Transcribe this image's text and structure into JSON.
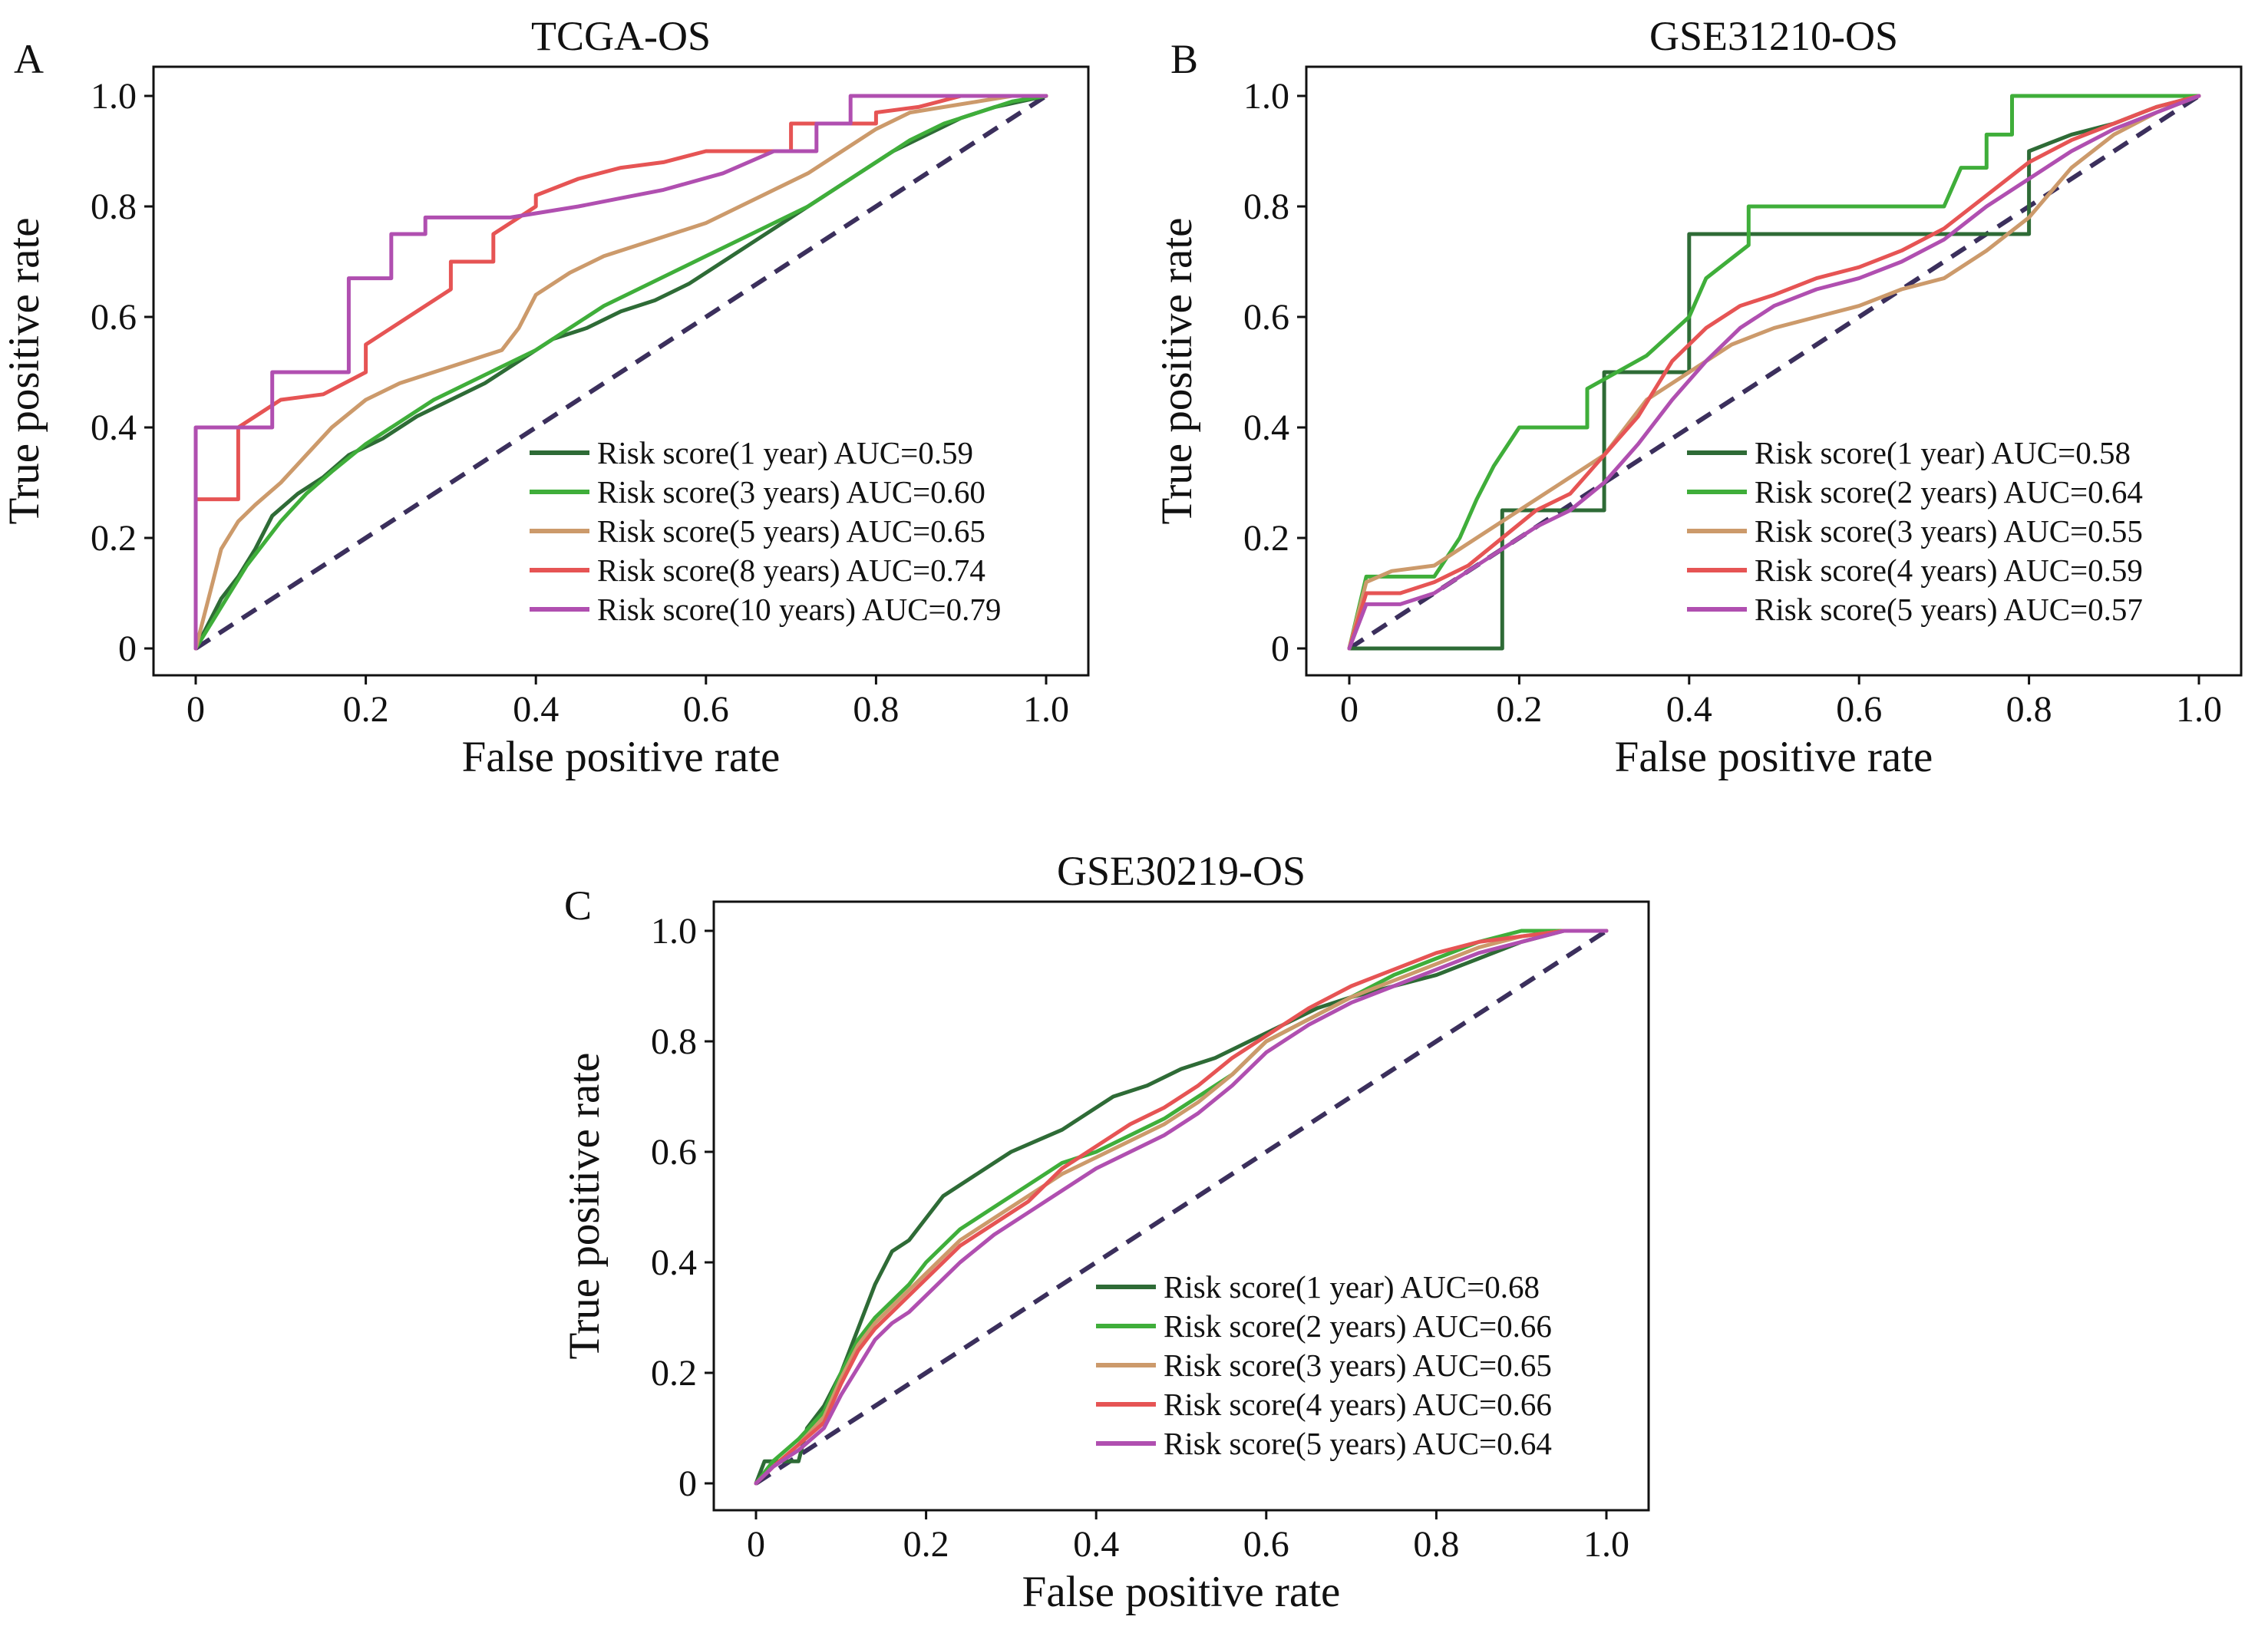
{
  "figure": {
    "panels": [
      {
        "panel_label": "A"
      },
      {
        "panel_label": "B"
      },
      {
        "panel_label": "C"
      }
    ]
  },
  "chart_data": [
    {
      "type": "line",
      "title": "TCGA-OS",
      "xlabel": "False positive rate",
      "ylabel": "True positive rate",
      "xlim": [
        0,
        1.0
      ],
      "ylim": [
        0,
        1.0
      ],
      "xticks": [
        "0",
        "0.2",
        "0.4",
        "0.6",
        "0.8",
        "1.0"
      ],
      "yticks": [
        "0",
        "0.2",
        "0.4",
        "0.6",
        "0.8",
        "1.0"
      ],
      "legend_position": "bottom-right",
      "reference_line": {
        "x": [
          0,
          1
        ],
        "y": [
          0,
          1
        ],
        "color": "#3b2f5c",
        "style": "dashed"
      },
      "series": [
        {
          "name": "Risk score(1 year) AUC=0.59",
          "color": "#2e6b36",
          "x": [
            0,
            0.02,
            0.03,
            0.05,
            0.07,
            0.09,
            0.12,
            0.15,
            0.18,
            0.22,
            0.26,
            0.3,
            0.34,
            0.38,
            0.42,
            0.46,
            0.5,
            0.54,
            0.58,
            0.62,
            0.66,
            0.7,
            0.74,
            0.78,
            0.82,
            0.86,
            0.9,
            0.94,
            0.97,
            1.0
          ],
          "y": [
            0,
            0.06,
            0.09,
            0.13,
            0.18,
            0.24,
            0.28,
            0.31,
            0.35,
            0.38,
            0.42,
            0.45,
            0.48,
            0.52,
            0.56,
            0.58,
            0.61,
            0.63,
            0.66,
            0.7,
            0.74,
            0.78,
            0.82,
            0.86,
            0.9,
            0.93,
            0.96,
            0.98,
            0.99,
            1.0
          ]
        },
        {
          "name": "Risk score(3 years) AUC=0.60",
          "color": "#3fae3a",
          "x": [
            0,
            0.02,
            0.04,
            0.06,
            0.08,
            0.1,
            0.13,
            0.16,
            0.2,
            0.24,
            0.28,
            0.32,
            0.36,
            0.4,
            0.44,
            0.48,
            0.52,
            0.56,
            0.6,
            0.64,
            0.68,
            0.72,
            0.76,
            0.8,
            0.84,
            0.88,
            0.92,
            0.96,
            1.0
          ],
          "y": [
            0,
            0.05,
            0.1,
            0.15,
            0.19,
            0.23,
            0.28,
            0.32,
            0.37,
            0.41,
            0.45,
            0.48,
            0.51,
            0.54,
            0.58,
            0.62,
            0.65,
            0.68,
            0.71,
            0.74,
            0.77,
            0.8,
            0.84,
            0.88,
            0.92,
            0.95,
            0.97,
            0.99,
            1.0
          ]
        },
        {
          "name": "Risk score(5 years) AUC=0.65",
          "color": "#cc9a6b",
          "x": [
            0,
            0.01,
            0.02,
            0.03,
            0.05,
            0.07,
            0.1,
            0.13,
            0.16,
            0.2,
            0.24,
            0.28,
            0.32,
            0.36,
            0.38,
            0.4,
            0.44,
            0.48,
            0.52,
            0.56,
            0.6,
            0.64,
            0.68,
            0.72,
            0.76,
            0.8,
            0.84,
            0.88,
            0.92,
            0.96,
            1.0
          ],
          "y": [
            0,
            0.06,
            0.12,
            0.18,
            0.23,
            0.26,
            0.3,
            0.35,
            0.4,
            0.45,
            0.48,
            0.5,
            0.52,
            0.54,
            0.58,
            0.64,
            0.68,
            0.71,
            0.73,
            0.75,
            0.77,
            0.8,
            0.83,
            0.86,
            0.9,
            0.94,
            0.97,
            0.98,
            0.99,
            1.0,
            1.0
          ]
        },
        {
          "name": "Risk score(8 years) AUC=0.74",
          "color": "#e65454",
          "x": [
            0,
            0.0,
            0.05,
            0.05,
            0.1,
            0.15,
            0.2,
            0.2,
            0.25,
            0.3,
            0.3,
            0.35,
            0.35,
            0.4,
            0.4,
            0.45,
            0.5,
            0.55,
            0.6,
            0.65,
            0.7,
            0.7,
            0.75,
            0.8,
            0.8,
            0.85,
            0.9,
            0.95,
            1.0
          ],
          "y": [
            0,
            0.27,
            0.27,
            0.4,
            0.45,
            0.46,
            0.5,
            0.55,
            0.6,
            0.65,
            0.7,
            0.7,
            0.75,
            0.8,
            0.82,
            0.85,
            0.87,
            0.88,
            0.9,
            0.9,
            0.9,
            0.95,
            0.95,
            0.95,
            0.97,
            0.98,
            1.0,
            1.0,
            1.0
          ]
        },
        {
          "name": "Risk score(10 years) AUC=0.79",
          "color": "#b04fb0",
          "x": [
            0,
            0.0,
            0.09,
            0.09,
            0.18,
            0.18,
            0.23,
            0.23,
            0.27,
            0.27,
            0.37,
            0.45,
            0.55,
            0.62,
            0.68,
            0.73,
            0.73,
            0.77,
            0.77,
            0.83,
            0.83,
            0.9,
            1.0
          ],
          "y": [
            0,
            0.4,
            0.4,
            0.5,
            0.5,
            0.67,
            0.67,
            0.75,
            0.75,
            0.78,
            0.78,
            0.8,
            0.83,
            0.86,
            0.9,
            0.9,
            0.95,
            0.95,
            1.0,
            1.0,
            1.0,
            1.0,
            1.0
          ]
        }
      ]
    },
    {
      "type": "line",
      "title": "GSE31210-OS",
      "xlabel": "False positive rate",
      "ylabel": "True positive rate",
      "xlim": [
        0,
        1.0
      ],
      "ylim": [
        0,
        1.0
      ],
      "xticks": [
        "0",
        "0.2",
        "0.4",
        "0.6",
        "0.8",
        "1.0"
      ],
      "yticks": [
        "0",
        "0.2",
        "0.4",
        "0.6",
        "0.8",
        "1.0"
      ],
      "legend_position": "bottom-right",
      "reference_line": {
        "x": [
          0,
          1
        ],
        "y": [
          0,
          1
        ],
        "color": "#3b2f5c",
        "style": "dashed"
      },
      "series": [
        {
          "name": "Risk score(1 year) AUC=0.58",
          "color": "#2e6b36",
          "x": [
            0,
            0.0,
            0.18,
            0.18,
            0.25,
            0.25,
            0.3,
            0.3,
            0.35,
            0.35,
            0.4,
            0.4,
            0.6,
            0.7,
            0.8,
            0.8,
            0.85,
            0.9,
            0.95,
            1.0
          ],
          "y": [
            0,
            0.0,
            0.0,
            0.25,
            0.25,
            0.25,
            0.25,
            0.5,
            0.5,
            0.5,
            0.5,
            0.75,
            0.75,
            0.75,
            0.75,
            0.9,
            0.93,
            0.95,
            0.98,
            1.0
          ]
        },
        {
          "name": "Risk score(2 years) AUC=0.64",
          "color": "#3fae3a",
          "x": [
            0,
            0.02,
            0.05,
            0.1,
            0.13,
            0.15,
            0.17,
            0.2,
            0.22,
            0.22,
            0.28,
            0.28,
            0.35,
            0.4,
            0.42,
            0.47,
            0.47,
            0.6,
            0.7,
            0.72,
            0.75,
            0.75,
            0.78,
            0.78,
            0.9,
            0.95,
            1.0
          ],
          "y": [
            0,
            0.13,
            0.13,
            0.13,
            0.2,
            0.27,
            0.33,
            0.4,
            0.4,
            0.4,
            0.4,
            0.47,
            0.53,
            0.6,
            0.67,
            0.73,
            0.8,
            0.8,
            0.8,
            0.87,
            0.87,
            0.93,
            0.93,
            1.0,
            1.0,
            1.0,
            1.0
          ]
        },
        {
          "name": "Risk score(3 years) AUC=0.55",
          "color": "#cc9a6b",
          "x": [
            0,
            0.02,
            0.05,
            0.1,
            0.15,
            0.2,
            0.25,
            0.3,
            0.35,
            0.4,
            0.45,
            0.5,
            0.55,
            0.6,
            0.65,
            0.7,
            0.75,
            0.8,
            0.85,
            0.9,
            0.95,
            1.0
          ],
          "y": [
            0,
            0.12,
            0.14,
            0.15,
            0.2,
            0.25,
            0.3,
            0.35,
            0.45,
            0.5,
            0.55,
            0.58,
            0.6,
            0.62,
            0.65,
            0.67,
            0.72,
            0.78,
            0.87,
            0.93,
            0.97,
            1.0
          ]
        },
        {
          "name": "Risk score(4 years) AUC=0.59",
          "color": "#e65454",
          "x": [
            0,
            0.02,
            0.06,
            0.1,
            0.14,
            0.18,
            0.22,
            0.26,
            0.3,
            0.34,
            0.38,
            0.42,
            0.46,
            0.5,
            0.55,
            0.6,
            0.65,
            0.7,
            0.75,
            0.8,
            0.85,
            0.9,
            0.95,
            1.0
          ],
          "y": [
            0,
            0.1,
            0.1,
            0.12,
            0.15,
            0.2,
            0.25,
            0.28,
            0.35,
            0.42,
            0.52,
            0.58,
            0.62,
            0.64,
            0.67,
            0.69,
            0.72,
            0.76,
            0.82,
            0.88,
            0.92,
            0.95,
            0.98,
            1.0
          ]
        },
        {
          "name": "Risk score(5 years) AUC=0.57",
          "color": "#b04fb0",
          "x": [
            0,
            0.02,
            0.06,
            0.1,
            0.14,
            0.18,
            0.22,
            0.26,
            0.3,
            0.34,
            0.38,
            0.42,
            0.46,
            0.5,
            0.55,
            0.6,
            0.65,
            0.7,
            0.75,
            0.8,
            0.85,
            0.9,
            0.95,
            1.0
          ],
          "y": [
            0,
            0.08,
            0.08,
            0.1,
            0.14,
            0.18,
            0.22,
            0.25,
            0.3,
            0.37,
            0.45,
            0.52,
            0.58,
            0.62,
            0.65,
            0.67,
            0.7,
            0.74,
            0.8,
            0.85,
            0.9,
            0.94,
            0.97,
            1.0
          ]
        }
      ]
    },
    {
      "type": "line",
      "title": "GSE30219-OS",
      "xlabel": "False positive rate",
      "ylabel": "True positive rate",
      "xlim": [
        0,
        1.0
      ],
      "ylim": [
        0,
        1.0
      ],
      "xticks": [
        "0",
        "0.2",
        "0.4",
        "0.6",
        "0.8",
        "1.0"
      ],
      "yticks": [
        "0",
        "0.2",
        "0.4",
        "0.6",
        "0.8",
        "1.0"
      ],
      "legend_position": "bottom-right",
      "reference_line": {
        "x": [
          0,
          1
        ],
        "y": [
          0,
          1
        ],
        "color": "#3b2f5c",
        "style": "dashed"
      },
      "series": [
        {
          "name": "Risk score(1 year) AUC=0.68",
          "color": "#2e6b36",
          "x": [
            0,
            0.01,
            0.05,
            0.06,
            0.08,
            0.1,
            0.12,
            0.14,
            0.16,
            0.18,
            0.2,
            0.22,
            0.25,
            0.28,
            0.3,
            0.33,
            0.36,
            0.38,
            0.4,
            0.42,
            0.46,
            0.5,
            0.54,
            0.58,
            0.62,
            0.66,
            0.7,
            0.75,
            0.8,
            0.85,
            0.9,
            0.95,
            1.0
          ],
          "y": [
            0,
            0.04,
            0.04,
            0.1,
            0.14,
            0.2,
            0.28,
            0.36,
            0.42,
            0.44,
            0.48,
            0.52,
            0.55,
            0.58,
            0.6,
            0.62,
            0.64,
            0.66,
            0.68,
            0.7,
            0.72,
            0.75,
            0.77,
            0.8,
            0.83,
            0.86,
            0.88,
            0.9,
            0.92,
            0.95,
            0.98,
            1.0,
            1.0
          ]
        },
        {
          "name": "Risk score(2 years) AUC=0.66",
          "color": "#3fae3a",
          "x": [
            0,
            0.02,
            0.05,
            0.08,
            0.1,
            0.12,
            0.14,
            0.16,
            0.18,
            0.2,
            0.24,
            0.28,
            0.32,
            0.36,
            0.4,
            0.44,
            0.48,
            0.52,
            0.56,
            0.6,
            0.65,
            0.7,
            0.75,
            0.8,
            0.85,
            0.9,
            0.95,
            1.0
          ],
          "y": [
            0,
            0.04,
            0.08,
            0.13,
            0.2,
            0.26,
            0.3,
            0.33,
            0.36,
            0.4,
            0.46,
            0.5,
            0.54,
            0.58,
            0.6,
            0.63,
            0.66,
            0.7,
            0.74,
            0.8,
            0.84,
            0.88,
            0.92,
            0.95,
            0.98,
            1.0,
            1.0,
            1.0
          ]
        },
        {
          "name": "Risk score(3 years) AUC=0.65",
          "color": "#cc9a6b",
          "x": [
            0,
            0.02,
            0.05,
            0.08,
            0.1,
            0.12,
            0.14,
            0.16,
            0.18,
            0.2,
            0.24,
            0.28,
            0.32,
            0.36,
            0.4,
            0.44,
            0.48,
            0.52,
            0.56,
            0.6,
            0.65,
            0.7,
            0.75,
            0.8,
            0.85,
            0.9,
            0.95,
            1.0
          ],
          "y": [
            0,
            0.03,
            0.07,
            0.12,
            0.19,
            0.25,
            0.29,
            0.32,
            0.35,
            0.38,
            0.44,
            0.48,
            0.52,
            0.56,
            0.59,
            0.62,
            0.65,
            0.69,
            0.74,
            0.8,
            0.84,
            0.88,
            0.91,
            0.94,
            0.97,
            0.99,
            1.0,
            1.0
          ]
        },
        {
          "name": "Risk score(4 years) AUC=0.66",
          "color": "#e65454",
          "x": [
            0,
            0.02,
            0.05,
            0.08,
            0.1,
            0.12,
            0.14,
            0.16,
            0.18,
            0.2,
            0.24,
            0.28,
            0.32,
            0.36,
            0.4,
            0.44,
            0.48,
            0.52,
            0.56,
            0.6,
            0.65,
            0.7,
            0.75,
            0.8,
            0.85,
            0.9,
            0.95,
            1.0
          ],
          "y": [
            0,
            0.03,
            0.07,
            0.11,
            0.18,
            0.24,
            0.28,
            0.31,
            0.34,
            0.37,
            0.43,
            0.47,
            0.51,
            0.57,
            0.61,
            0.65,
            0.68,
            0.72,
            0.77,
            0.81,
            0.86,
            0.9,
            0.93,
            0.96,
            0.98,
            0.99,
            1.0,
            1.0
          ]
        },
        {
          "name": "Risk score(5 years) AUC=0.64",
          "color": "#b04fb0",
          "x": [
            0,
            0.02,
            0.05,
            0.08,
            0.1,
            0.12,
            0.14,
            0.16,
            0.18,
            0.2,
            0.24,
            0.28,
            0.32,
            0.36,
            0.4,
            0.44,
            0.48,
            0.52,
            0.56,
            0.6,
            0.65,
            0.7,
            0.75,
            0.8,
            0.85,
            0.9,
            0.95,
            1.0
          ],
          "y": [
            0,
            0.03,
            0.06,
            0.1,
            0.16,
            0.21,
            0.26,
            0.29,
            0.31,
            0.34,
            0.4,
            0.45,
            0.49,
            0.53,
            0.57,
            0.6,
            0.63,
            0.67,
            0.72,
            0.78,
            0.83,
            0.87,
            0.9,
            0.93,
            0.96,
            0.98,
            1.0,
            1.0
          ]
        }
      ]
    }
  ]
}
